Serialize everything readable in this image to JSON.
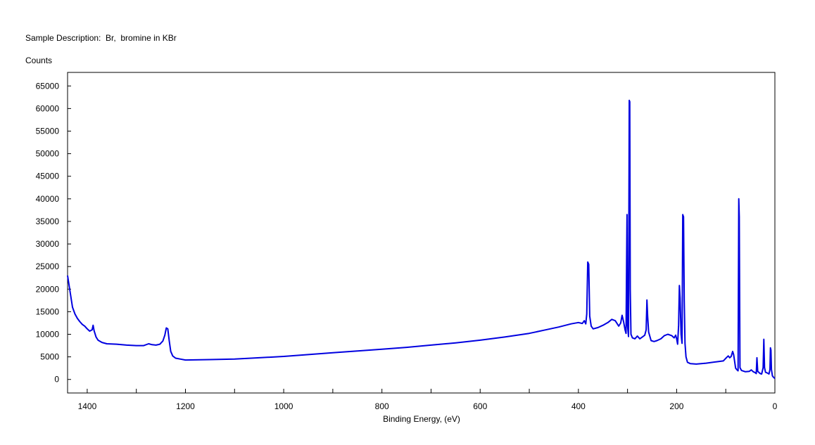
{
  "header": {
    "sample_description": "Sample Description:  Br,  bromine in KBr",
    "y_axis_title": "Counts"
  },
  "chart_data": {
    "type": "line",
    "title": "",
    "xlabel": "Binding Energy, (eV)",
    "ylabel": "Counts",
    "xlim": [
      1440,
      0
    ],
    "ylim": [
      -3000,
      68000
    ],
    "x_ticks": [
      1400,
      1200,
      1000,
      800,
      600,
      400,
      200,
      0
    ],
    "y_ticks": [
      0,
      5000,
      10000,
      15000,
      20000,
      25000,
      30000,
      35000,
      40000,
      45000,
      50000,
      55000,
      60000,
      65000
    ],
    "grid": false,
    "colors": {
      "line": "#0000e0",
      "frame": "#000000"
    },
    "series": [
      {
        "name": "",
        "points": [
          [
            1440,
            23000
          ],
          [
            1435,
            19500
          ],
          [
            1430,
            16000
          ],
          [
            1425,
            14500
          ],
          [
            1420,
            13500
          ],
          [
            1415,
            12800
          ],
          [
            1410,
            12200
          ],
          [
            1405,
            11800
          ],
          [
            1400,
            11200
          ],
          [
            1395,
            10700
          ],
          [
            1390,
            11000
          ],
          [
            1388,
            12000
          ],
          [
            1386,
            10800
          ],
          [
            1382,
            9400
          ],
          [
            1378,
            8700
          ],
          [
            1370,
            8200
          ],
          [
            1360,
            7900
          ],
          [
            1340,
            7800
          ],
          [
            1320,
            7600
          ],
          [
            1300,
            7500
          ],
          [
            1285,
            7500
          ],
          [
            1275,
            7900
          ],
          [
            1268,
            7700
          ],
          [
            1260,
            7600
          ],
          [
            1252,
            7800
          ],
          [
            1246,
            8500
          ],
          [
            1242,
            9800
          ],
          [
            1239,
            11400
          ],
          [
            1236,
            11200
          ],
          [
            1233,
            8500
          ],
          [
            1230,
            6200
          ],
          [
            1226,
            5200
          ],
          [
            1220,
            4700
          ],
          [
            1210,
            4500
          ],
          [
            1200,
            4300
          ],
          [
            1150,
            4400
          ],
          [
            1100,
            4500
          ],
          [
            1050,
            4800
          ],
          [
            1000,
            5100
          ],
          [
            950,
            5500
          ],
          [
            900,
            5900
          ],
          [
            850,
            6300
          ],
          [
            800,
            6700
          ],
          [
            750,
            7100
          ],
          [
            700,
            7600
          ],
          [
            650,
            8100
          ],
          [
            600,
            8700
          ],
          [
            550,
            9400
          ],
          [
            500,
            10200
          ],
          [
            470,
            10900
          ],
          [
            440,
            11600
          ],
          [
            415,
            12300
          ],
          [
            400,
            12600
          ],
          [
            392,
            12400
          ],
          [
            388,
            13000
          ],
          [
            385,
            12300
          ],
          [
            383,
            14500
          ],
          [
            381,
            26000
          ],
          [
            379,
            25500
          ],
          [
            377,
            14000
          ],
          [
            374,
            11800
          ],
          [
            370,
            11200
          ],
          [
            360,
            11500
          ],
          [
            350,
            12000
          ],
          [
            340,
            12600
          ],
          [
            332,
            13300
          ],
          [
            325,
            13000
          ],
          [
            318,
            11800
          ],
          [
            314,
            12500
          ],
          [
            311,
            14200
          ],
          [
            308,
            12800
          ],
          [
            305,
            11000
          ],
          [
            303,
            10200
          ],
          [
            301,
            36500
          ],
          [
            300,
            12000
          ],
          [
            298,
            9500
          ],
          [
            296.5,
            61800
          ],
          [
            295.5,
            61500
          ],
          [
            294.5,
            20000
          ],
          [
            293,
            10000
          ],
          [
            290,
            9200
          ],
          [
            285,
            9000
          ],
          [
            280,
            9600
          ],
          [
            275,
            9000
          ],
          [
            270,
            9400
          ],
          [
            265,
            9800
          ],
          [
            262,
            11000
          ],
          [
            260.5,
            17600
          ],
          [
            259,
            14000
          ],
          [
            257,
            10500
          ],
          [
            252,
            8600
          ],
          [
            246,
            8400
          ],
          [
            240,
            8600
          ],
          [
            232,
            9000
          ],
          [
            225,
            9700
          ],
          [
            218,
            10000
          ],
          [
            210,
            9700
          ],
          [
            205,
            9200
          ],
          [
            202,
            9800
          ],
          [
            200,
            9000
          ],
          [
            198,
            7800
          ],
          [
            196,
            12000
          ],
          [
            194.5,
            20800
          ],
          [
            193,
            18000
          ],
          [
            191,
            10000
          ],
          [
            189,
            8000
          ],
          [
            187.5,
            36500
          ],
          [
            186,
            36000
          ],
          [
            184.5,
            17500
          ],
          [
            183,
            8000
          ],
          [
            181,
            5000
          ],
          [
            178,
            3800
          ],
          [
            172,
            3500
          ],
          [
            160,
            3400
          ],
          [
            140,
            3600
          ],
          [
            120,
            3900
          ],
          [
            105,
            4100
          ],
          [
            98,
            4900
          ],
          [
            95,
            5200
          ],
          [
            92,
            4800
          ],
          [
            89,
            5100
          ],
          [
            86,
            6200
          ],
          [
            84,
            5500
          ],
          [
            80,
            2500
          ],
          [
            77,
            2100
          ],
          [
            75,
            1900
          ],
          [
            73.5,
            40000
          ],
          [
            72.5,
            36000
          ],
          [
            71,
            2600
          ],
          [
            68,
            2000
          ],
          [
            60,
            1700
          ],
          [
            52,
            1800
          ],
          [
            48,
            2100
          ],
          [
            44,
            1700
          ],
          [
            40,
            1500
          ],
          [
            38,
            1300
          ],
          [
            36.5,
            4800
          ],
          [
            35,
            1800
          ],
          [
            30,
            1300
          ],
          [
            27,
            1200
          ],
          [
            24,
            2600
          ],
          [
            22.5,
            8900
          ],
          [
            21,
            2600
          ],
          [
            19,
            1600
          ],
          [
            15,
            1400
          ],
          [
            12,
            1200
          ],
          [
            10,
            2200
          ],
          [
            9,
            7000
          ],
          [
            8,
            6500
          ],
          [
            7,
            2200
          ],
          [
            5,
            800
          ],
          [
            3,
            500
          ],
          [
            1,
            300
          ],
          [
            0,
            200
          ]
        ]
      }
    ]
  }
}
